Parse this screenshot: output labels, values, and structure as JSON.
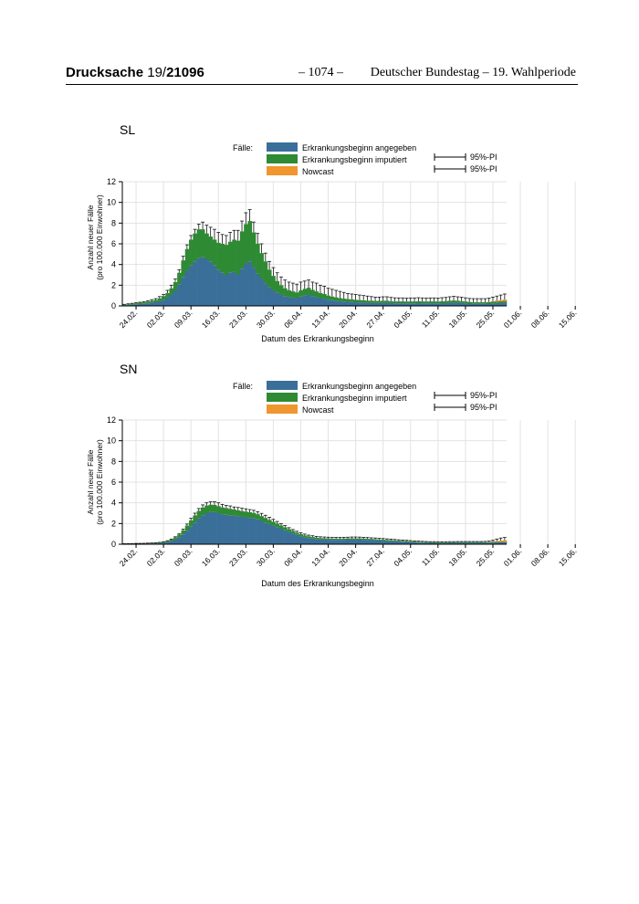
{
  "header": {
    "drucksache": "Drucksache",
    "number_prefix": "19/",
    "number_bold": "21096",
    "page": "– 1074 –",
    "right": "Deutscher Bundestag – 19. Wahlperiode"
  },
  "legend": {
    "title": "Fälle:",
    "items": [
      "Erkrankungsbeginn angegeben",
      "Erkrankungsbeginn imputiert",
      "Nowcast"
    ],
    "pi_labels": [
      "95%-PI",
      "95%-PI"
    ],
    "colors": {
      "reported": "#3a6f9a",
      "imputed": "#2f8a34",
      "nowcast": "#f0962e"
    }
  },
  "chart_data": [
    {
      "type": "bar",
      "state": "SL",
      "stacked": true,
      "ylabel": "Anzahl neuer Fälle\n(pro 100.000 Einwohner)",
      "xlabel": "Datum des Erkrankungsbeginn",
      "ylim": [
        0,
        12
      ],
      "yticks": [
        0,
        2,
        4,
        6,
        8,
        10,
        12
      ],
      "xtick_labels": [
        "24.02.",
        "02.03.",
        "09.03.",
        "16.03.",
        "23.03.",
        "30.03.",
        "06.04.",
        "13.04.",
        "20.04.",
        "27.04.",
        "04.05.",
        "11.05.",
        "18.05.",
        "25.05.",
        "01.06.",
        "08.06.",
        "15.06."
      ],
      "grid": true,
      "series": [
        {
          "name": "Erkrankungsbeginn angegeben",
          "values": [
            0.05,
            0.08,
            0.12,
            0.15,
            0.18,
            0.2,
            0.25,
            0.3,
            0.35,
            0.45,
            0.6,
            0.8,
            1.1,
            1.5,
            2.1,
            2.8,
            3.4,
            3.9,
            4.3,
            4.6,
            4.7,
            4.5,
            4.3,
            3.9,
            3.5,
            3.2,
            3.0,
            3.2,
            3.3,
            3.0,
            3.6,
            4.1,
            4.3,
            3.7,
            3.1,
            2.6,
            2.2,
            1.8,
            1.5,
            1.3,
            1.1,
            0.95,
            0.85,
            0.8,
            0.75,
            0.9,
            1.0,
            1.1,
            0.95,
            0.85,
            0.75,
            0.7,
            0.6,
            0.55,
            0.5,
            0.45,
            0.42,
            0.4,
            0.38,
            0.35,
            0.33,
            0.32,
            0.3,
            0.3,
            0.28,
            0.28,
            0.3,
            0.3,
            0.27,
            0.25,
            0.25,
            0.25,
            0.24,
            0.25,
            0.25,
            0.26,
            0.25,
            0.24,
            0.25,
            0.25,
            0.24,
            0.26,
            0.27,
            0.3,
            0.32,
            0.3,
            0.28,
            0.25,
            0.22,
            0.2,
            0.2,
            0.2,
            0.2,
            0.22,
            0.25,
            0.28,
            0.3,
            0.32
          ]
        },
        {
          "name": "Erkrankungsbeginn imputiert",
          "values": [
            0.05,
            0.07,
            0.08,
            0.1,
            0.12,
            0.14,
            0.16,
            0.18,
            0.22,
            0.28,
            0.35,
            0.45,
            0.6,
            0.8,
            1.1,
            1.6,
            2.1,
            2.5,
            2.7,
            2.8,
            2.7,
            2.5,
            2.4,
            2.5,
            2.6,
            2.8,
            2.9,
            3.0,
            3.1,
            3.3,
            3.6,
            3.8,
            3.9,
            3.4,
            2.9,
            2.5,
            2.1,
            1.7,
            1.4,
            1.1,
            0.9,
            0.75,
            0.65,
            0.6,
            0.55,
            0.6,
            0.65,
            0.65,
            0.6,
            0.55,
            0.5,
            0.45,
            0.4,
            0.35,
            0.32,
            0.3,
            0.28,
            0.26,
            0.25,
            0.24,
            0.23,
            0.22,
            0.21,
            0.2,
            0.2,
            0.2,
            0.2,
            0.2,
            0.18,
            0.18,
            0.18,
            0.18,
            0.18,
            0.18,
            0.18,
            0.18,
            0.18,
            0.18,
            0.18,
            0.18,
            0.18,
            0.18,
            0.2,
            0.2,
            0.2,
            0.2,
            0.18,
            0.17,
            0.16,
            0.15,
            0.15,
            0.15,
            0.15,
            0.15,
            0.15,
            0.15,
            0.15,
            0.15
          ]
        },
        {
          "name": "Nowcast",
          "values": [
            0,
            0,
            0,
            0,
            0,
            0,
            0,
            0,
            0,
            0,
            0,
            0,
            0,
            0,
            0,
            0,
            0,
            0,
            0,
            0,
            0,
            0,
            0,
            0,
            0,
            0,
            0,
            0,
            0,
            0,
            0,
            0,
            0,
            0,
            0,
            0,
            0,
            0,
            0,
            0,
            0,
            0,
            0,
            0,
            0,
            0,
            0,
            0,
            0,
            0,
            0,
            0,
            0,
            0,
            0,
            0,
            0,
            0,
            0,
            0,
            0,
            0,
            0,
            0,
            0,
            0,
            0,
            0,
            0,
            0,
            0,
            0,
            0,
            0,
            0,
            0,
            0,
            0,
            0,
            0,
            0,
            0,
            0,
            0,
            0,
            0,
            0,
            0,
            0,
            0,
            0,
            0,
            0,
            0.02,
            0.05,
            0.08,
            0.12,
            0.15
          ]
        }
      ],
      "pi_upper": [
        0.15,
        0.2,
        0.25,
        0.3,
        0.35,
        0.4,
        0.5,
        0.6,
        0.7,
        0.9,
        1.1,
        1.5,
        2.0,
        2.6,
        3.5,
        4.8,
        5.9,
        6.8,
        7.4,
        7.9,
        8.1,
        7.8,
        7.6,
        7.4,
        7.1,
        6.9,
        6.8,
        7.1,
        7.3,
        7.3,
        8.2,
        9.0,
        9.3,
        8.1,
        7.0,
        6.0,
        5.1,
        4.3,
        3.7,
        3.2,
        2.8,
        2.5,
        2.3,
        2.2,
        2.1,
        2.3,
        2.4,
        2.5,
        2.3,
        2.2,
        2.0,
        1.9,
        1.7,
        1.6,
        1.5,
        1.4,
        1.3,
        1.2,
        1.15,
        1.1,
        1.05,
        1.0,
        0.95,
        0.9,
        0.85,
        0.85,
        0.88,
        0.88,
        0.82,
        0.78,
        0.77,
        0.77,
        0.75,
        0.77,
        0.77,
        0.79,
        0.77,
        0.75,
        0.77,
        0.77,
        0.75,
        0.79,
        0.82,
        0.88,
        0.92,
        0.88,
        0.84,
        0.78,
        0.72,
        0.7,
        0.7,
        0.7,
        0.7,
        0.75,
        0.85,
        0.95,
        1.05,
        1.15
      ]
    },
    {
      "type": "bar",
      "state": "SN",
      "stacked": true,
      "ylabel": "Anzahl neuer Fälle\n(pro 100.000 Einwohner)",
      "xlabel": "Datum des Erkrankungsbeginn",
      "ylim": [
        0,
        12
      ],
      "yticks": [
        0,
        2,
        4,
        6,
        8,
        10,
        12
      ],
      "xtick_labels": [
        "24.02.",
        "02.03.",
        "09.03.",
        "16.03.",
        "23.03.",
        "30.03.",
        "06.04.",
        "13.04.",
        "20.04.",
        "27.04.",
        "04.05.",
        "11.05.",
        "18.05.",
        "25.05.",
        "01.06.",
        "08.06.",
        "15.06."
      ],
      "grid": true,
      "series": [
        {
          "name": "Erkrankungsbeginn angegeben",
          "values": [
            0.01,
            0.02,
            0.02,
            0.03,
            0.03,
            0.04,
            0.05,
            0.06,
            0.08,
            0.1,
            0.14,
            0.2,
            0.3,
            0.45,
            0.65,
            0.95,
            1.3,
            1.7,
            2.1,
            2.5,
            2.8,
            3.0,
            3.1,
            3.1,
            3.0,
            2.9,
            2.85,
            2.8,
            2.75,
            2.7,
            2.65,
            2.6,
            2.55,
            2.5,
            2.4,
            2.25,
            2.1,
            1.95,
            1.8,
            1.65,
            1.5,
            1.35,
            1.2,
            1.05,
            0.9,
            0.78,
            0.68,
            0.6,
            0.55,
            0.5,
            0.47,
            0.45,
            0.43,
            0.42,
            0.42,
            0.42,
            0.43,
            0.44,
            0.45,
            0.45,
            0.44,
            0.43,
            0.42,
            0.4,
            0.38,
            0.36,
            0.34,
            0.32,
            0.3,
            0.28,
            0.26,
            0.24,
            0.22,
            0.2,
            0.18,
            0.16,
            0.15,
            0.14,
            0.13,
            0.13,
            0.12,
            0.12,
            0.12,
            0.13,
            0.13,
            0.14,
            0.14,
            0.14,
            0.14,
            0.14,
            0.14,
            0.14,
            0.14,
            0.15,
            0.16,
            0.17,
            0.18,
            0.18
          ]
        },
        {
          "name": "Erkrankungsbeginn imputiert",
          "values": [
            0.01,
            0.01,
            0.01,
            0.02,
            0.02,
            0.02,
            0.03,
            0.03,
            0.04,
            0.05,
            0.07,
            0.1,
            0.14,
            0.2,
            0.28,
            0.38,
            0.5,
            0.6,
            0.68,
            0.72,
            0.74,
            0.74,
            0.72,
            0.7,
            0.68,
            0.66,
            0.64,
            0.62,
            0.6,
            0.58,
            0.56,
            0.55,
            0.54,
            0.52,
            0.5,
            0.47,
            0.44,
            0.4,
            0.37,
            0.34,
            0.31,
            0.28,
            0.25,
            0.23,
            0.21,
            0.19,
            0.17,
            0.16,
            0.15,
            0.14,
            0.13,
            0.13,
            0.13,
            0.12,
            0.12,
            0.12,
            0.12,
            0.12,
            0.12,
            0.12,
            0.12,
            0.12,
            0.11,
            0.11,
            0.1,
            0.1,
            0.1,
            0.09,
            0.09,
            0.09,
            0.08,
            0.08,
            0.08,
            0.07,
            0.07,
            0.07,
            0.06,
            0.06,
            0.06,
            0.06,
            0.06,
            0.06,
            0.06,
            0.06,
            0.06,
            0.06,
            0.06,
            0.06,
            0.06,
            0.06,
            0.06,
            0.06,
            0.06,
            0.06,
            0.06,
            0.06,
            0.06,
            0.06
          ]
        },
        {
          "name": "Nowcast",
          "values": [
            0,
            0,
            0,
            0,
            0,
            0,
            0,
            0,
            0,
            0,
            0,
            0,
            0,
            0,
            0,
            0,
            0,
            0,
            0,
            0,
            0,
            0,
            0,
            0,
            0,
            0,
            0,
            0,
            0,
            0,
            0,
            0,
            0,
            0,
            0,
            0,
            0,
            0,
            0,
            0,
            0,
            0,
            0,
            0,
            0,
            0,
            0,
            0,
            0,
            0,
            0,
            0,
            0,
            0,
            0,
            0,
            0,
            0,
            0,
            0,
            0,
            0,
            0,
            0,
            0,
            0,
            0,
            0,
            0,
            0,
            0,
            0,
            0,
            0,
            0,
            0,
            0,
            0,
            0,
            0,
            0,
            0,
            0,
            0,
            0,
            0,
            0,
            0,
            0,
            0,
            0,
            0,
            0,
            0.02,
            0.05,
            0.08,
            0.12,
            0.15
          ]
        }
      ],
      "pi_upper": [
        0.05,
        0.06,
        0.06,
        0.08,
        0.08,
        0.09,
        0.11,
        0.12,
        0.15,
        0.18,
        0.24,
        0.34,
        0.5,
        0.72,
        1.0,
        1.45,
        1.95,
        2.5,
        3.0,
        3.45,
        3.8,
        4.0,
        4.1,
        4.1,
        4.0,
        3.85,
        3.75,
        3.7,
        3.6,
        3.55,
        3.48,
        3.42,
        3.35,
        3.28,
        3.15,
        2.98,
        2.8,
        2.6,
        2.4,
        2.2,
        2.0,
        1.8,
        1.6,
        1.42,
        1.25,
        1.1,
        0.98,
        0.88,
        0.82,
        0.76,
        0.72,
        0.7,
        0.68,
        0.66,
        0.66,
        0.66,
        0.67,
        0.68,
        0.7,
        0.7,
        0.69,
        0.67,
        0.65,
        0.62,
        0.6,
        0.57,
        0.55,
        0.52,
        0.49,
        0.46,
        0.43,
        0.4,
        0.38,
        0.35,
        0.32,
        0.3,
        0.28,
        0.26,
        0.25,
        0.25,
        0.24,
        0.24,
        0.24,
        0.25,
        0.25,
        0.26,
        0.26,
        0.26,
        0.26,
        0.26,
        0.26,
        0.26,
        0.27,
        0.3,
        0.38,
        0.5,
        0.6,
        0.65
      ]
    }
  ]
}
